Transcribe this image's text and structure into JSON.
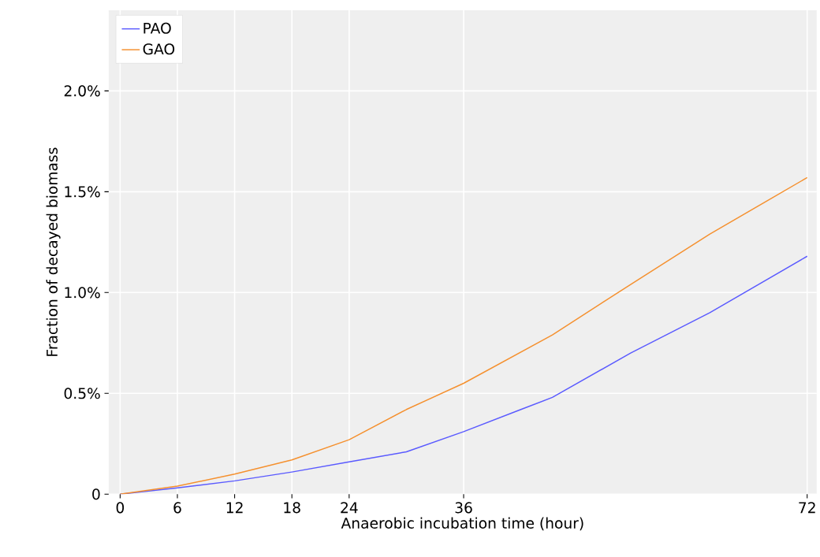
{
  "chart_data": {
    "type": "line",
    "xlabel": "Anaerobic incubation time (hour)",
    "ylabel": "Fraction of decayed biomass",
    "xlim": [
      -1.2,
      73
    ],
    "ylim": [
      0,
      2.4
    ],
    "xticks": [
      0,
      6,
      12,
      18,
      24,
      36,
      72
    ],
    "yticks": [
      {
        "value": 0,
        "label": "0"
      },
      {
        "value": 0.5,
        "label": "0.5%"
      },
      {
        "value": 1.0,
        "label": "1.0%"
      },
      {
        "value": 1.5,
        "label": "1.5%"
      },
      {
        "value": 2.0,
        "label": "2.0%"
      }
    ],
    "grid": true,
    "legend": "top left",
    "marker": "none",
    "line_style": "solid",
    "series": [
      {
        "name": "PAO",
        "color": "#5a5aff",
        "x": [
          0,
          6,
          12,
          18,
          24,
          30,
          36,
          42,
          45.3,
          53.5,
          61.8,
          72
        ],
        "values": [
          0,
          0.031,
          0.066,
          0.11,
          0.16,
          0.21,
          0.31,
          0.42,
          0.48,
          0.7,
          0.9,
          1.18
        ]
      },
      {
        "name": "GAO",
        "color": "#f5902e",
        "x": [
          0,
          6,
          12,
          18,
          24,
          30,
          36,
          45.3,
          53.5,
          61.8,
          72
        ],
        "values": [
          0,
          0.04,
          0.1,
          0.17,
          0.27,
          0.42,
          0.55,
          0.79,
          1.04,
          1.29,
          1.57
        ]
      }
    ]
  }
}
